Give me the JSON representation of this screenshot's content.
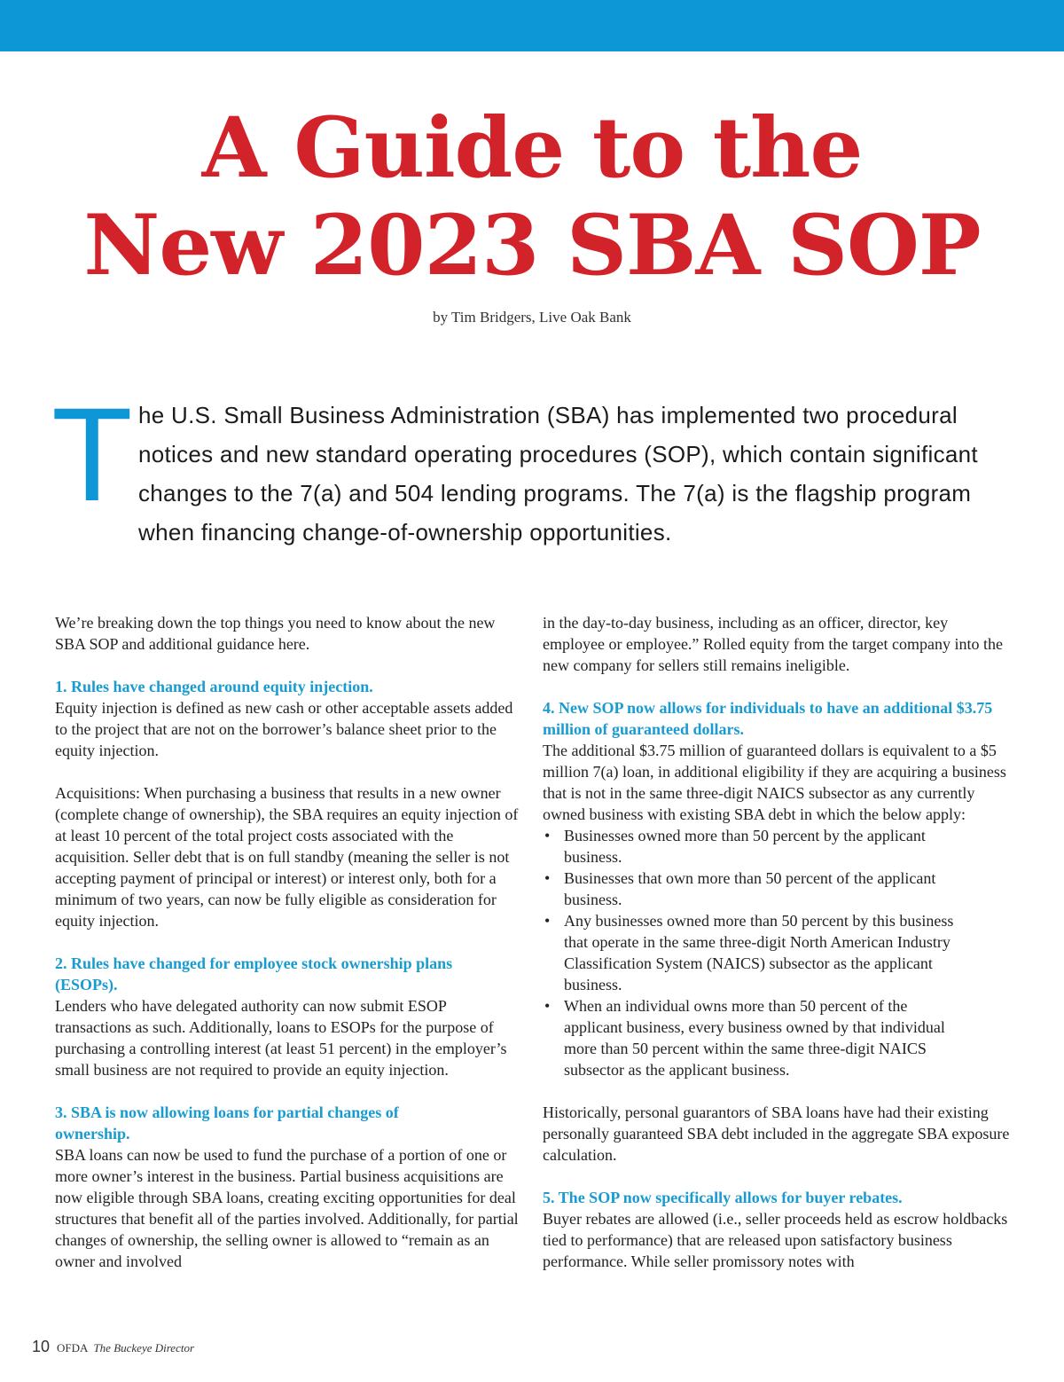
{
  "colors": {
    "top_bar": "#0d97d6",
    "title": "#d2232a",
    "headings": "#1a9bd0",
    "drop_cap": "#0d97d6"
  },
  "title": {
    "line1": "A Guide to the",
    "line2": "New 2023 SBA SOP"
  },
  "byline": "by Tim Bridgers, Live Oak Bank",
  "lead": {
    "drop_cap": "T",
    "text": "he U.S. Small Business Administration (SBA) has implemented two procedural notices and new standard operating procedures (SOP), which contain significant changes to the 7(a) and 504 lending programs. The 7(a) is the flagship program when financing change-of-ownership opportunities."
  },
  "left_column": {
    "intro": "We’re breaking down the top things you need to know about the new SBA SOP and additional guidance here.",
    "s1_heading": "1. Rules have changed around equity injection.",
    "s1_p1": "Equity injection is defined as new cash or other acceptable assets added to the project that are not on the borrower’s balance sheet prior to the equity injection.",
    "s1_p2": "Acquisitions: When purchasing a business that results in a new owner (complete change of ownership), the SBA requires an equity injection of at least 10 percent of the total project costs associated with the acquisition. Seller debt that is on full standby (meaning the seller is not accepting payment of principal or interest) or interest only, both for a minimum of two years, can now be fully eligible as consideration for equity injection.",
    "s2_heading": "2. Rules have changed for employee stock ownership plans (ESOPs).",
    "s2_p1": "Lenders who have delegated authority can now submit ESOP transactions as such. Additionally, loans to ESOPs for the purpose of purchasing a controlling interest (at least 51 percent) in the employer’s small business are not required to provide an equity injection.",
    "s3_heading": "3. SBA is now allowing loans for partial changes of ownership.",
    "s3_p1": "SBA loans can now be used to fund the purchase of a portion of one or more owner’s interest in the business. Partial business acquisitions are now eligible through SBA loans, creating exciting opportunities for deal structures that benefit all of the parties involved. Additionally, for partial changes of ownership, the selling owner is allowed to “remain as an owner and involved"
  },
  "right_column": {
    "cont": "in the day-to-day business, including as an officer, director, key employee or employee.” Rolled equity from the target company into the new company for sellers still remains ineligible.",
    "s4_heading": "4. New SOP now allows for individuals to have an additional $3.75 million of guaranteed dollars.",
    "s4_p1": "The additional $3.75 million of guaranteed dollars is equivalent to a $5 million 7(a) loan, in additional eligibility if they are acquiring a business that is not in the same three-digit NAICS subsector as any currently owned business with existing SBA debt in which the below apply:",
    "s4_bullets": [
      "Businesses owned more than 50 percent by the applicant business.",
      "Businesses that own more than 50 percent of the applicant business.",
      "Any businesses owned more than 50 percent by this business that operate in the same three-digit North American Industry Classification System (NAICS) subsector as the applicant business.",
      "When an individual owns more than 50 percent of the applicant business, every business owned by that individual more than 50 percent within the same three-digit NAICS subsector as the applicant business."
    ],
    "s4_p2": "Historically, personal guarantors of SBA loans have had their existing personally guaranteed SBA debt included in the aggregate SBA exposure calculation.",
    "s5_heading": "5. The SOP now specifically allows for buyer rebates.",
    "s5_p1": "Buyer rebates are allowed (i.e., seller proceeds held as escrow holdbacks tied to performance) that are released upon satisfactory business performance. While seller promissory notes with"
  },
  "footer": {
    "page_number": "10",
    "org": "OFDA",
    "publication": "The Buckeye Director"
  }
}
